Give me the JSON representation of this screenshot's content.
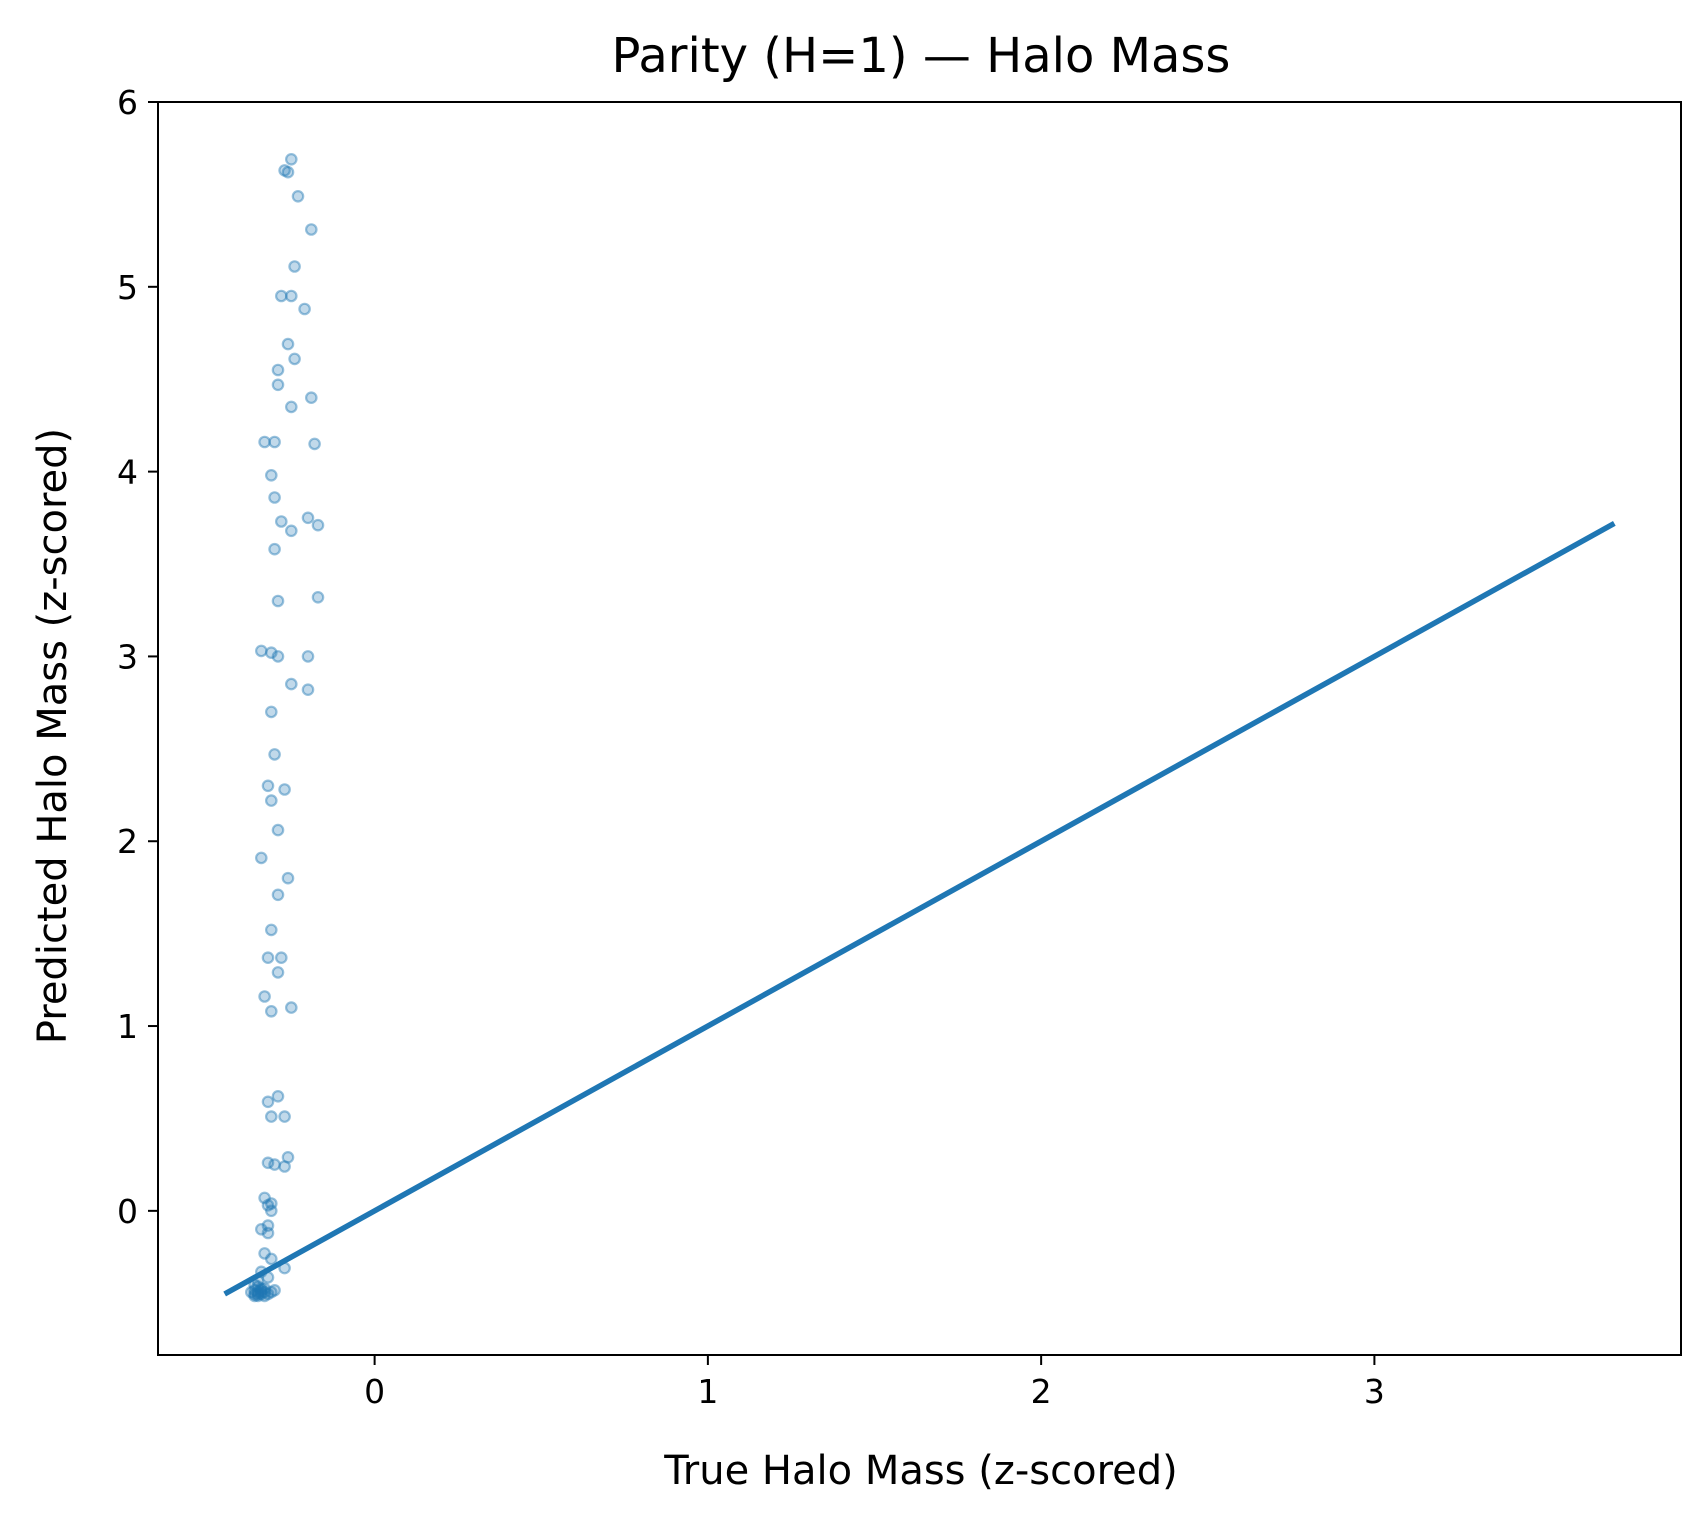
{
  "chart_data": {
    "type": "scatter",
    "title": "Parity (H=1) — Halo Mass",
    "xlabel": "True Halo Mass (z-scored)",
    "ylabel": "Predicted Halo Mass (z-scored)",
    "xlim": [
      -0.65,
      3.92
    ],
    "ylim": [
      -0.78,
      6.0
    ],
    "xticks": [
      0,
      1,
      2,
      3
    ],
    "yticks": [
      0,
      1,
      2,
      3,
      4,
      5,
      6
    ],
    "grid": false,
    "legend": "none",
    "colors": {
      "points": "#1f77b4",
      "line": "#1f77b4",
      "axes": "#000000"
    },
    "reference_line": {
      "x": [
        -0.45,
        3.72
      ],
      "y": [
        -0.45,
        3.72
      ]
    },
    "series": [
      {
        "x": [
          -0.25,
          -0.27,
          -0.26,
          -0.23,
          -0.19,
          -0.24,
          -0.28,
          -0.25,
          -0.21,
          -0.26,
          -0.24,
          -0.29,
          -0.29,
          -0.19,
          -0.25,
          -0.33,
          -0.3,
          -0.18,
          -0.31,
          -0.3,
          -0.2,
          -0.28,
          -0.17,
          -0.25,
          -0.3,
          -0.29,
          -0.17,
          -0.34,
          -0.31,
          -0.29,
          -0.2,
          -0.25,
          -0.2,
          -0.31,
          -0.3,
          -0.32,
          -0.27,
          -0.31,
          -0.29,
          -0.34,
          -0.26,
          -0.29,
          -0.31,
          -0.28,
          -0.32,
          -0.29,
          -0.33,
          -0.25,
          -0.31,
          -0.29,
          -0.32,
          -0.27,
          -0.31,
          -0.26,
          -0.32,
          -0.3,
          -0.27,
          -0.33,
          -0.31,
          -0.32,
          -0.31,
          -0.34,
          -0.32,
          -0.32,
          -0.33,
          -0.31,
          -0.27,
          -0.34,
          -0.32,
          -0.35,
          -0.36,
          -0.35,
          -0.34,
          -0.33,
          -0.36,
          -0.34,
          -0.35,
          -0.37,
          -0.35,
          -0.33,
          -0.34,
          -0.36,
          -0.35,
          -0.33,
          -0.32,
          -0.31,
          -0.3,
          -0.34,
          -0.36
        ],
        "y": [
          5.69,
          5.63,
          5.62,
          5.49,
          5.31,
          5.11,
          4.95,
          4.95,
          4.88,
          4.69,
          4.61,
          4.55,
          4.47,
          4.4,
          4.35,
          4.16,
          4.16,
          4.15,
          3.98,
          3.86,
          3.75,
          3.73,
          3.71,
          3.68,
          3.58,
          3.3,
          3.32,
          3.03,
          3.02,
          3.0,
          3.0,
          2.85,
          2.82,
          2.7,
          2.47,
          2.3,
          2.28,
          2.22,
          2.06,
          1.91,
          1.8,
          1.71,
          1.52,
          1.37,
          1.37,
          1.29,
          1.16,
          1.1,
          1.08,
          0.62,
          0.59,
          0.51,
          0.51,
          0.29,
          0.26,
          0.25,
          0.24,
          0.07,
          0.04,
          0.03,
          0.0,
          -0.1,
          -0.08,
          -0.12,
          -0.23,
          -0.26,
          -0.31,
          -0.33,
          -0.36,
          -0.38,
          -0.4,
          -0.41,
          -0.42,
          -0.42,
          -0.43,
          -0.43,
          -0.44,
          -0.44,
          -0.45,
          -0.44,
          -0.45,
          -0.45,
          -0.46,
          -0.46,
          -0.45,
          -0.44,
          -0.43,
          -0.44,
          -0.46
        ]
      }
    ]
  }
}
